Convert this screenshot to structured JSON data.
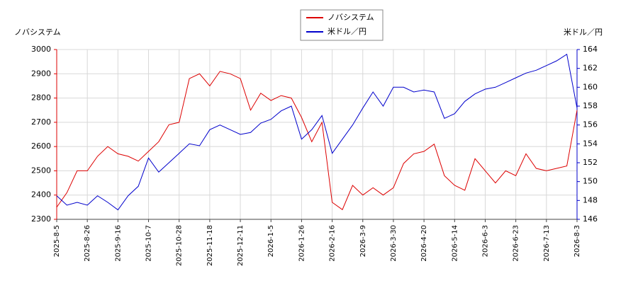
{
  "chart_data": {
    "type": "line",
    "y_label": "ノバシステム",
    "y2_label": "米ドル／円",
    "categories": [
      "2025-8-5",
      null,
      null,
      "2025-8-26",
      null,
      null,
      "2025-9-16",
      null,
      null,
      "2025-10-7",
      null,
      null,
      "2025-10-28",
      null,
      null,
      "2025-11-18",
      null,
      null,
      "2025-12-11",
      null,
      null,
      "2026-1-5",
      null,
      null,
      "2026-1-26",
      null,
      null,
      "2026-2-16",
      null,
      null,
      "2026-3-9",
      null,
      null,
      "2026-3-30",
      null,
      null,
      "2026-4-20",
      null,
      null,
      "2026-5-14",
      null,
      null,
      "2026-6-3",
      null,
      null,
      "2026-6-23",
      null,
      null,
      "2026-7-13",
      null,
      null,
      "2026-8-3"
    ],
    "series": [
      {
        "name": "ノバシステム",
        "color": "#dd0000",
        "axis": "y",
        "values": [
          2350,
          2410,
          2500,
          2500,
          2560,
          2600,
          2570,
          2560,
          2540,
          2580,
          2620,
          2690,
          2700,
          2880,
          2900,
          2850,
          2910,
          2900,
          2880,
          2750,
          2820,
          2790,
          2810,
          2800,
          2720,
          2620,
          2700,
          2370,
          2340,
          2440,
          2400,
          2430,
          2400,
          2430,
          2530,
          2570,
          2580,
          2610,
          2480,
          2440,
          2420,
          2550,
          2500,
          2450,
          2500,
          2480,
          2570,
          2510,
          2500,
          2510,
          2520,
          2750
        ]
      },
      {
        "name": "米ドル／円",
        "color": "#0000cc",
        "axis": "y2",
        "values": [
          148.5,
          147.5,
          147.8,
          147.5,
          148.5,
          147.8,
          147,
          148.5,
          149.5,
          152.5,
          151,
          152,
          153,
          154,
          153.8,
          155.5,
          156,
          155.5,
          155,
          155.2,
          156.2,
          156.6,
          157.5,
          158,
          154.5,
          155.5,
          157,
          153,
          154.5,
          156,
          157.8,
          159.5,
          158,
          160,
          160,
          159.5,
          159.7,
          159.5,
          156.7,
          157.2,
          158.5,
          159.3,
          159.8,
          160,
          160.5,
          161,
          161.5,
          161.8,
          162.3,
          162.8,
          163.5,
          157.8
        ]
      }
    ],
    "ylim": [
      2300,
      3000
    ],
    "yticks": [
      2300,
      2400,
      2500,
      2600,
      2700,
      2800,
      2900,
      3000
    ],
    "y2lim": [
      146,
      164
    ],
    "y2ticks": [
      146,
      148,
      150,
      152,
      154,
      156,
      158,
      160,
      162,
      164
    ],
    "grid": true
  }
}
